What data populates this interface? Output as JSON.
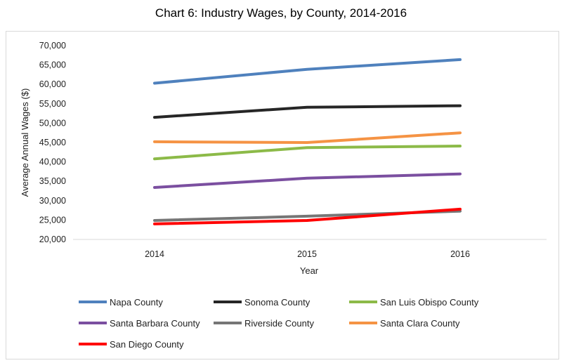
{
  "chart_data": {
    "type": "line",
    "title": "Chart 6: Industry Wages, by County, 2014-2016",
    "xlabel": "Year",
    "ylabel": "Average Annual Wages ($)",
    "categories": [
      "2014",
      "2015",
      "2016"
    ],
    "ylim": [
      20000,
      70000
    ],
    "yticks": [
      "20,000",
      "25,000",
      "30,000",
      "35,000",
      "40,000",
      "45,000",
      "50,000",
      "55,000",
      "60,000",
      "65,000",
      "70,000"
    ],
    "grid": false,
    "legend": "bottom",
    "series": [
      {
        "name": "Napa County",
        "color": "#4f81bd",
        "values": [
          60300,
          63900,
          66400
        ]
      },
      {
        "name": "Sonoma County",
        "color": "#262626",
        "values": [
          51500,
          54100,
          54500
        ]
      },
      {
        "name": "San Luis Obispo County",
        "color": "#8cba48",
        "values": [
          40800,
          43700,
          44100
        ]
      },
      {
        "name": "Santa Barbara County",
        "color": "#7b4fa0",
        "values": [
          33400,
          35800,
          36900
        ]
      },
      {
        "name": "Riverside County",
        "color": "#767676",
        "values": [
          24900,
          26000,
          27300
        ]
      },
      {
        "name": "Santa Clara County",
        "color": "#f59344",
        "values": [
          45200,
          45000,
          47500
        ]
      },
      {
        "name": "San Diego County",
        "color": "#ff0000",
        "values": [
          24000,
          24900,
          27800
        ]
      }
    ]
  }
}
